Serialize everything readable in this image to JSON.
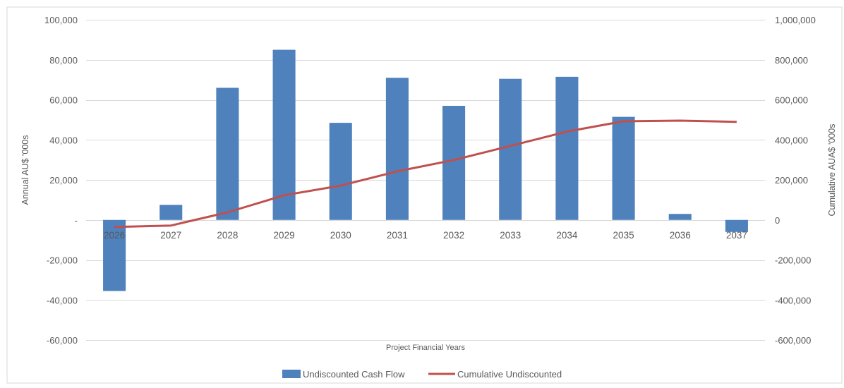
{
  "chart_data": {
    "type": "bar",
    "xlabel": "Project Financial Years",
    "ylabel": "Annual AU$ '000s",
    "y2label": "Cumulative AUA$ '000s",
    "categories": [
      "2026",
      "2027",
      "2028",
      "2029",
      "2030",
      "2031",
      "2032",
      "2033",
      "2034",
      "2035",
      "2036",
      "2037"
    ],
    "ylim": [
      -60000,
      100000
    ],
    "y2lim": [
      -600000,
      1000000
    ],
    "yticks": [
      {
        "value": 100000,
        "label": "100,000"
      },
      {
        "value": 80000,
        "label": "80,000"
      },
      {
        "value": 60000,
        "label": "60,000"
      },
      {
        "value": 40000,
        "label": "40,000"
      },
      {
        "value": 20000,
        "label": "20,000"
      },
      {
        "value": 0,
        "label": "-"
      },
      {
        "value": -20000,
        "label": "-20,000"
      },
      {
        "value": -40000,
        "label": "-40,000"
      },
      {
        "value": -60000,
        "label": "-60,000"
      }
    ],
    "y2ticks": [
      {
        "value": 1000000,
        "label": "1,000,000"
      },
      {
        "value": 800000,
        "label": "800,000"
      },
      {
        "value": 600000,
        "label": "600,000"
      },
      {
        "value": 400000,
        "label": "400,000"
      },
      {
        "value": 200000,
        "label": "200,000"
      },
      {
        "value": 0,
        "label": "0"
      },
      {
        "value": -200000,
        "label": "-200,000"
      },
      {
        "value": -400000,
        "label": "-400,000"
      },
      {
        "value": -600000,
        "label": "-600,000"
      }
    ],
    "series": [
      {
        "name": "Undiscounted Cash Flow",
        "type": "bar",
        "axis": "left",
        "color": "#4f81bd",
        "values": [
          -35500,
          7500,
          66000,
          85000,
          48500,
          71000,
          57000,
          70500,
          71500,
          51500,
          3000,
          -6000
        ]
      },
      {
        "name": "Cumulative Undiscounted",
        "type": "line",
        "axis": "right",
        "color": "#c0504d",
        "values": [
          -35500,
          -28000,
          38000,
          123000,
          171500,
          242500,
          299500,
          370000,
          441500,
          493000,
          496000,
          490000
        ]
      }
    ],
    "grid": true,
    "legend": "bottom"
  }
}
